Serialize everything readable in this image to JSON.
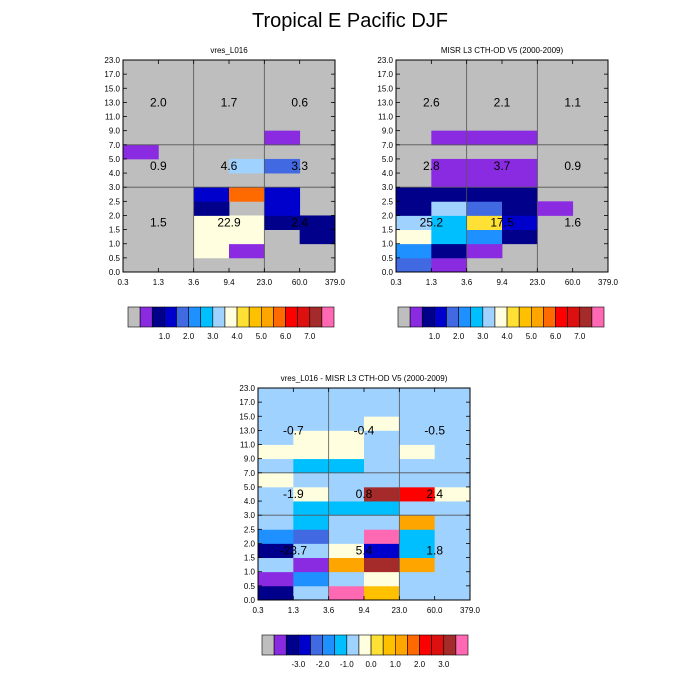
{
  "title": "Tropical E Pacific DJF",
  "colors": {
    "missing": "#bebebe",
    "grid": "#555555",
    "palette": [
      "#bebebe",
      "#8a2be2",
      "#00008b",
      "#0000cd",
      "#4169e1",
      "#1e90ff",
      "#00bfff",
      "#a0d2ff",
      "#ffffe0",
      "#ffe135",
      "#ffc000",
      "#ffa500",
      "#ff6a00",
      "#ff0000",
      "#dd1010",
      "#a52a2a",
      "#ff69b4"
    ]
  },
  "chart_data": [
    {
      "type": "heatmap",
      "title": "vres_L016",
      "x_ticks": [
        "0.3",
        "1.3",
        "3.6",
        "9.4",
        "23.0",
        "60.0",
        "379.0"
      ],
      "y_ticks": [
        "0.0",
        "0.5",
        "1.0",
        "1.5",
        "2.0",
        "2.5",
        "3.0",
        "4.0",
        "5.0",
        "7.0",
        "9.0",
        "11.0",
        "13.0",
        "15.0",
        "17.0",
        "23.0"
      ],
      "cells": [
        [
          0,
          0,
          0,
          0,
          0,
          0
        ],
        [
          0,
          0,
          8,
          1,
          0,
          0
        ],
        [
          0,
          0,
          8,
          8,
          0,
          2
        ],
        [
          0,
          0,
          8,
          8,
          2,
          2
        ],
        [
          0,
          0,
          2,
          0,
          3,
          0
        ],
        [
          0,
          0,
          3,
          12,
          3,
          0
        ],
        [
          0,
          0,
          0,
          0,
          0,
          0
        ],
        [
          0,
          0,
          0,
          7,
          4,
          0
        ],
        [
          1,
          0,
          0,
          0,
          0,
          0
        ],
        [
          0,
          0,
          0,
          0,
          1,
          0
        ],
        [
          0,
          0,
          0,
          0,
          0,
          0
        ],
        [
          0,
          0,
          0,
          0,
          0,
          0
        ],
        [
          0,
          0,
          0,
          0,
          0,
          0
        ],
        [
          0,
          0,
          0,
          0,
          0,
          0
        ],
        [
          0,
          0,
          0,
          0,
          0,
          0
        ]
      ],
      "annotations": [
        {
          "text": "2.0",
          "col": 0,
          "row": 12
        },
        {
          "text": "1.7",
          "col": 1,
          "row": 12
        },
        {
          "text": "0.6",
          "col": 2,
          "row": 12
        },
        {
          "text": "0.9",
          "col": 0,
          "row": 7.5
        },
        {
          "text": "4.6",
          "col": 1,
          "row": 7.5
        },
        {
          "text": "3.3",
          "col": 2,
          "row": 7.5
        },
        {
          "text": "1.5",
          "col": 0,
          "row": 3.5
        },
        {
          "text": "22.9",
          "col": 1,
          "row": 3.5
        },
        {
          "text": "2.4",
          "col": 2,
          "row": 3.5
        }
      ],
      "colorbar_labels": [
        "1.0",
        "2.0",
        "3.0",
        "4.0",
        "5.0",
        "6.0",
        "7.0"
      ]
    },
    {
      "type": "heatmap",
      "title": "MISR L3 CTH-OD V5 (2000-2009)",
      "x_ticks": [
        "0.3",
        "1.3",
        "3.6",
        "9.4",
        "23.0",
        "60.0",
        "379.0"
      ],
      "y_ticks": [
        "0.0",
        "0.5",
        "1.0",
        "1.5",
        "2.0",
        "2.5",
        "3.0",
        "4.0",
        "5.0",
        "7.0",
        "9.0",
        "11.0",
        "13.0",
        "15.0",
        "17.0",
        "23.0"
      ],
      "cells": [
        [
          4,
          1,
          0,
          0,
          0,
          0
        ],
        [
          5,
          2,
          1,
          0,
          0,
          0
        ],
        [
          8,
          6,
          5,
          2,
          0,
          0
        ],
        [
          7,
          6,
          9,
          3,
          0,
          0
        ],
        [
          2,
          7,
          4,
          2,
          1,
          0
        ],
        [
          2,
          2,
          2,
          2,
          0,
          0
        ],
        [
          0,
          1,
          1,
          1,
          0,
          0
        ],
        [
          0,
          1,
          1,
          1,
          0,
          0
        ],
        [
          0,
          0,
          0,
          0,
          0,
          0
        ],
        [
          0,
          1,
          1,
          1,
          0,
          0
        ],
        [
          0,
          0,
          0,
          0,
          0,
          0
        ],
        [
          0,
          0,
          0,
          0,
          0,
          0
        ],
        [
          0,
          0,
          0,
          0,
          0,
          0
        ],
        [
          0,
          0,
          0,
          0,
          0,
          0
        ],
        [
          0,
          0,
          0,
          0,
          0,
          0
        ]
      ],
      "annotations": [
        {
          "text": "2.6",
          "col": 0,
          "row": 12
        },
        {
          "text": "2.1",
          "col": 1,
          "row": 12
        },
        {
          "text": "1.1",
          "col": 2,
          "row": 12
        },
        {
          "text": "2.8",
          "col": 0,
          "row": 7.5
        },
        {
          "text": "3.7",
          "col": 1,
          "row": 7.5
        },
        {
          "text": "0.9",
          "col": 2,
          "row": 7.5
        },
        {
          "text": "25.2",
          "col": 0,
          "row": 3.5
        },
        {
          "text": "17.5",
          "col": 1,
          "row": 3.5
        },
        {
          "text": "1.6",
          "col": 2,
          "row": 3.5
        }
      ],
      "colorbar_labels": [
        "1.0",
        "2.0",
        "3.0",
        "4.0",
        "5.0",
        "6.0",
        "7.0"
      ]
    },
    {
      "type": "heatmap",
      "title": "vres_L016 - MISR L3 CTH-OD V5 (2000-2009)",
      "x_ticks": [
        "0.3",
        "1.3",
        "3.6",
        "9.4",
        "23.0",
        "60.0",
        "379.0"
      ],
      "y_ticks": [
        "0.0",
        "0.5",
        "1.0",
        "1.5",
        "2.0",
        "2.5",
        "3.0",
        "4.0",
        "5.0",
        "7.0",
        "9.0",
        "11.0",
        "13.0",
        "15.0",
        "17.0",
        "23.0"
      ],
      "cells": [
        [
          2,
          7,
          16,
          10,
          7,
          7
        ],
        [
          1,
          5,
          7,
          8,
          7,
          7
        ],
        [
          7,
          1,
          11,
          15,
          11,
          7
        ],
        [
          2,
          7,
          8,
          3,
          6,
          7
        ],
        [
          5,
          4,
          7,
          16,
          6,
          7
        ],
        [
          7,
          6,
          7,
          7,
          11,
          7
        ],
        [
          7,
          6,
          6,
          6,
          7,
          7
        ],
        [
          7,
          8,
          7,
          15,
          13,
          8
        ],
        [
          8,
          7,
          7,
          7,
          7,
          7
        ],
        [
          7,
          6,
          6,
          7,
          7,
          7
        ],
        [
          8,
          8,
          8,
          7,
          8,
          7
        ],
        [
          7,
          8,
          8,
          7,
          7,
          7
        ],
        [
          7,
          7,
          7,
          8,
          7,
          7
        ],
        [
          7,
          7,
          7,
          7,
          7,
          7
        ],
        [
          7,
          7,
          7,
          7,
          7,
          7
        ]
      ],
      "annotations": [
        {
          "text": "-0.7",
          "col": 0,
          "row": 12
        },
        {
          "text": "-0.4",
          "col": 1,
          "row": 12
        },
        {
          "text": "-0.5",
          "col": 2,
          "row": 12
        },
        {
          "text": "-1.9",
          "col": 0,
          "row": 7.5
        },
        {
          "text": "0.8",
          "col": 1,
          "row": 7.5
        },
        {
          "text": "2.4",
          "col": 2,
          "row": 7.5
        },
        {
          "text": "-23.7",
          "col": 0,
          "row": 3.5
        },
        {
          "text": "5.4",
          "col": 1,
          "row": 3.5
        },
        {
          "text": "1.8",
          "col": 2,
          "row": 3.5
        }
      ],
      "colorbar_labels": [
        "-3.0",
        "-2.0",
        "-1.0",
        "0.0",
        "1.0",
        "2.0",
        "3.0"
      ]
    }
  ]
}
